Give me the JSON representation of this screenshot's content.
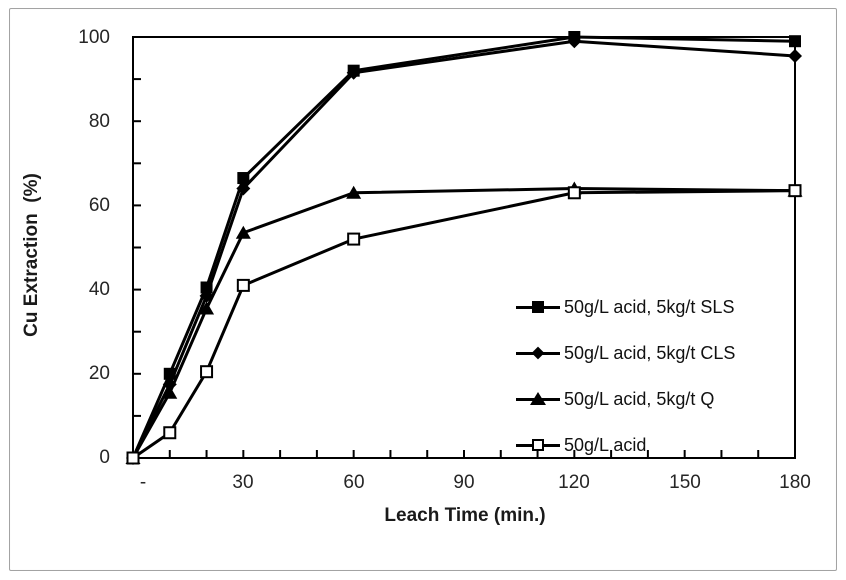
{
  "figure": {
    "y_axis_title": "Cu Extraction  (%)",
    "x_axis_title": "Leach Time (min.)",
    "y_tick_labels": [
      "100",
      "80",
      "60",
      "40",
      "20",
      "0"
    ],
    "x_tick_labels": [
      "-",
      "30",
      "60",
      "90",
      "120",
      "150",
      "180"
    ]
  },
  "legend": {
    "items": [
      {
        "label": "50g/L acid, 5kg/t SLS",
        "marker": "filled-square"
      },
      {
        "label": "50g/L acid, 5kg/t CLS",
        "marker": "filled-diamond"
      },
      {
        "label": "50g/L acid, 5kg/t Q",
        "marker": "filled-triangle"
      },
      {
        "label": "50g/L acid",
        "marker": "open-square"
      }
    ]
  },
  "colors": {
    "series": "#000000",
    "frame": "#000000",
    "outer_border": "#a3a3a3",
    "background": "#ffffff"
  },
  "chart_data": {
    "type": "line",
    "title": "",
    "xlabel": "Leach Time (min.)",
    "ylabel": "Cu Extraction (%)",
    "xlim": [
      0,
      180
    ],
    "ylim": [
      0,
      100
    ],
    "x_major_ticks": [
      0,
      30,
      60,
      90,
      120,
      150,
      180
    ],
    "x_minor_tick_step": 10,
    "y_major_ticks": [
      0,
      20,
      40,
      60,
      80,
      100
    ],
    "y_minor_tick_step": 10,
    "grid": false,
    "legend_position": "inside-lower-right",
    "x": [
      0,
      10,
      20,
      30,
      60,
      120,
      180
    ],
    "series": [
      {
        "name": "50g/L acid, 5kg/t SLS",
        "marker": "filled-square",
        "values": [
          0,
          20,
          40.5,
          66.5,
          92,
          100,
          99
        ]
      },
      {
        "name": "50g/L acid, 5kg/t CLS",
        "marker": "filled-diamond",
        "values": [
          0,
          17.5,
          38.5,
          64,
          91.5,
          99,
          95.5
        ]
      },
      {
        "name": "50g/L acid, 5kg/t Q",
        "marker": "filled-triangle",
        "values": [
          0,
          15.5,
          35.5,
          53.5,
          63,
          64,
          63.5
        ]
      },
      {
        "name": "50g/L acid",
        "marker": "open-square",
        "values": [
          0,
          6,
          20.5,
          41,
          52,
          63,
          63.5
        ]
      }
    ]
  }
}
